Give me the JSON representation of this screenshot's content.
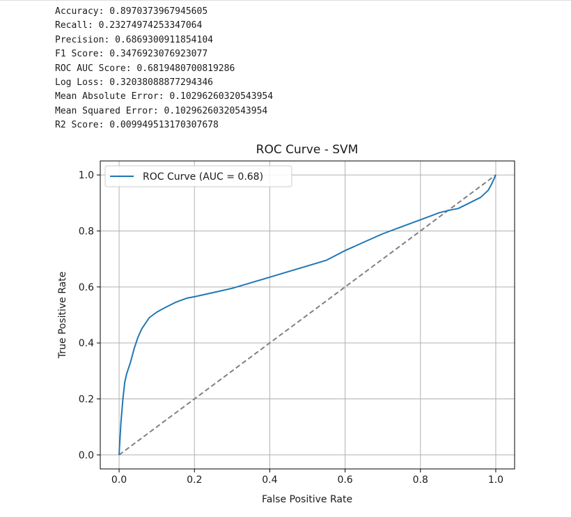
{
  "metrics": [
    "Accuracy: 0.8970373967945605",
    "Recall: 0.23274974253347064",
    "Precision: 0.6869300911854104",
    "F1 Score: 0.3476923076923077",
    "ROC AUC Score: 0.6819480700819286",
    "Log Loss: 0.32038088877294346",
    "Mean Absolute Error: 0.10296260320543954",
    "Mean Squared Error: 0.10296260320543954",
    "R2 Score: 0.009949513170307678"
  ],
  "chart_data": {
    "type": "line",
    "title": "ROC Curve - SVM",
    "xlabel": "False Positive Rate",
    "ylabel": "True Positive Rate",
    "xlim": [
      -0.05,
      1.05
    ],
    "ylim": [
      -0.05,
      1.05
    ],
    "xticks": [
      0.0,
      0.2,
      0.4,
      0.6,
      0.8,
      1.0
    ],
    "xtick_labels": [
      "0.0",
      "0.2",
      "0.4",
      "0.6",
      "0.8",
      "1.0"
    ],
    "yticks": [
      0.0,
      0.2,
      0.4,
      0.6,
      0.8,
      1.0
    ],
    "ytick_labels": [
      "0.0",
      "0.2",
      "0.4",
      "0.6",
      "0.8",
      "1.0"
    ],
    "grid": true,
    "legend": "upper left",
    "series": [
      {
        "name": "ROC Curve (AUC = 0.68)",
        "color": "#1f77b4",
        "style": "solid",
        "x": [
          0.0,
          0.002,
          0.005,
          0.01,
          0.015,
          0.02,
          0.03,
          0.04,
          0.05,
          0.06,
          0.07,
          0.08,
          0.09,
          0.1,
          0.12,
          0.15,
          0.18,
          0.2,
          0.25,
          0.3,
          0.35,
          0.4,
          0.45,
          0.5,
          0.55,
          0.6,
          0.65,
          0.7,
          0.75,
          0.8,
          0.85,
          0.88,
          0.9,
          0.93,
          0.96,
          0.98,
          0.99,
          1.0
        ],
        "y": [
          0.0,
          0.05,
          0.12,
          0.2,
          0.26,
          0.29,
          0.33,
          0.38,
          0.42,
          0.45,
          0.47,
          0.49,
          0.5,
          0.51,
          0.525,
          0.545,
          0.56,
          0.565,
          0.58,
          0.595,
          0.615,
          0.635,
          0.655,
          0.675,
          0.695,
          0.73,
          0.76,
          0.79,
          0.815,
          0.84,
          0.865,
          0.875,
          0.88,
          0.9,
          0.92,
          0.945,
          0.97,
          1.0
        ]
      },
      {
        "name": "",
        "color": "#808080",
        "style": "dashed",
        "x": [
          0.0,
          1.0
        ],
        "y": [
          0.0,
          1.0
        ]
      }
    ]
  }
}
